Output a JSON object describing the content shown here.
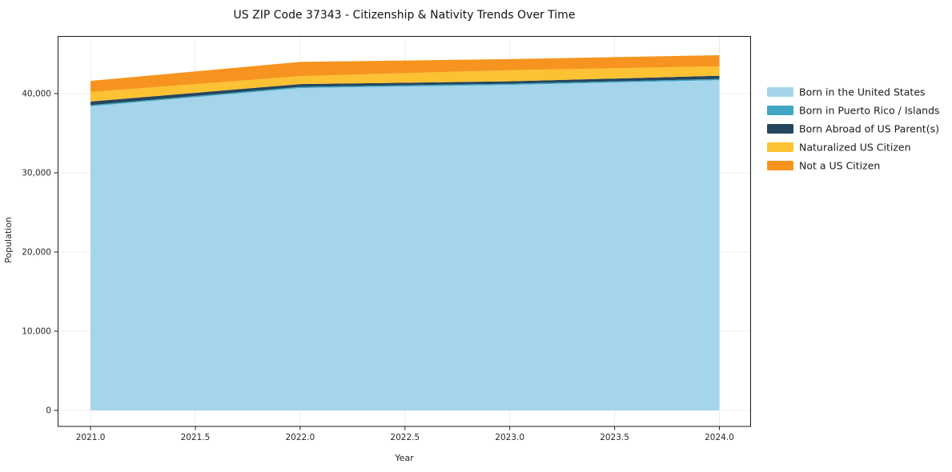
{
  "chart_data": {
    "type": "area",
    "stacked": true,
    "title": "US ZIP Code 37343 - Citizenship & Nativity Trends Over Time",
    "xlabel": "Year",
    "ylabel": "Population",
    "x": [
      2021,
      2022,
      2023,
      2024
    ],
    "series": [
      {
        "name": "Born in the United States",
        "color": "#a5d5ea",
        "values": [
          38400,
          40700,
          41100,
          41700
        ]
      },
      {
        "name": "Born in Puerto Rico / Islands",
        "color": "#41a6c4",
        "values": [
          150,
          150,
          150,
          150
        ]
      },
      {
        "name": "Born Abroad of US Parent(s)",
        "color": "#25465e",
        "values": [
          450,
          350,
          300,
          400
        ]
      },
      {
        "name": "Naturalized US Citizen",
        "color": "#fcc233",
        "values": [
          1200,
          1000,
          1400,
          1200
        ]
      },
      {
        "name": "Not a US Citizen",
        "color": "#f7941f",
        "values": [
          1400,
          1800,
          1400,
          1400
        ]
      }
    ],
    "totals": [
      41600,
      44000,
      44350,
      44850
    ],
    "xtick_values": [
      2021.0,
      2021.5,
      2022.0,
      2022.5,
      2023.0,
      2023.5,
      2024.0
    ],
    "xtick_labels": [
      "2021.0",
      "2021.5",
      "2022.0",
      "2022.5",
      "2023.0",
      "2023.5",
      "2024.0"
    ],
    "ytick_values": [
      0,
      10000,
      20000,
      30000,
      40000
    ],
    "ytick_labels": [
      "0",
      "10,000",
      "20,000",
      "30,000",
      "40,000"
    ],
    "xlim": [
      2020.843,
      2024.151
    ],
    "ylim": [
      -2020,
      47270
    ],
    "grid": true,
    "grid_color": "#ececec",
    "spine_color": "#1a1a1a",
    "background_color": "#ffffff",
    "legend_position": "right"
  }
}
